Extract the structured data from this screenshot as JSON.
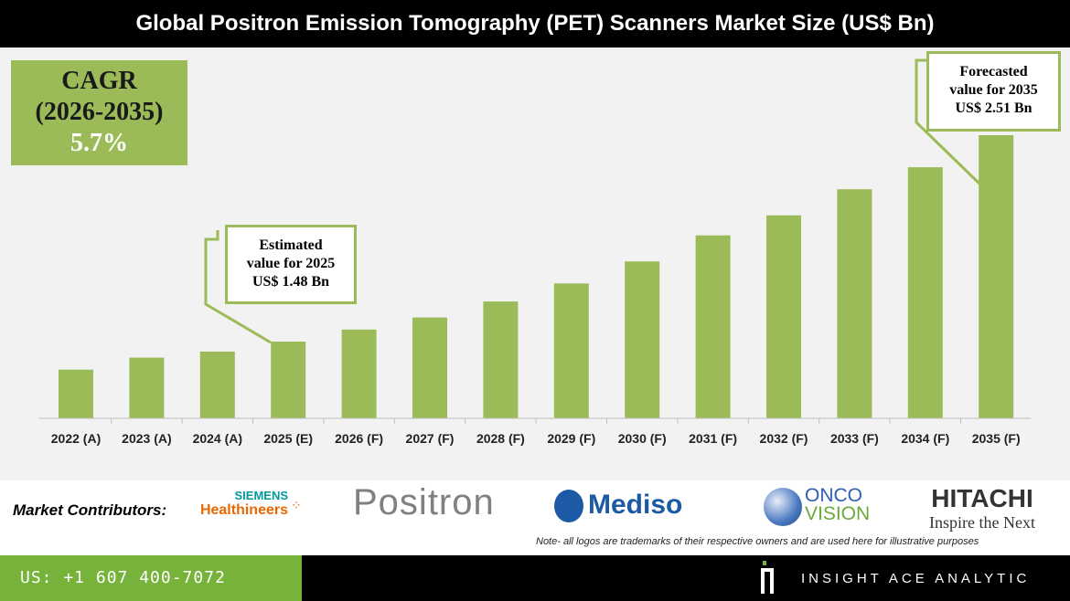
{
  "title": "Global Positron Emission Tomography (PET) Scanners Market Size (US$ Bn)",
  "cagr": {
    "label": "CAGR",
    "period": "(2026-2035)",
    "value": "5.7%"
  },
  "callouts": {
    "estimated": {
      "line1": "Estimated",
      "line2": "value for 2025",
      "line3": "US$ 1.48 Bn"
    },
    "forecasted": {
      "line1": "Forecasted",
      "line2": "value for 2035",
      "line3": "US$ 2.51 Bn"
    }
  },
  "chart_data": {
    "type": "bar",
    "title": "Global Positron Emission Tomography (PET) Scanners Market Size (US$ Bn)",
    "categories": [
      "2022 (A)",
      "2023 (A)",
      "2024 (A)",
      "2025 (E)",
      "2026 (F)",
      "2027 (F)",
      "2028 (F)",
      "2029 (F)",
      "2030 (F)",
      "2031 (F)",
      "2032 (F)",
      "2033 (F)",
      "2034 (F)",
      "2035 (F)"
    ],
    "values": [
      1.34,
      1.4,
      1.43,
      1.48,
      1.54,
      1.6,
      1.68,
      1.77,
      1.88,
      2.01,
      2.11,
      2.24,
      2.35,
      2.51
    ],
    "xlabel": "",
    "ylabel": "",
    "grid": false,
    "bar_color": "#9bbb59"
  },
  "footer": {
    "contributors_label": "Market Contributors:",
    "logos": {
      "siemens_top": "SIEMENS",
      "siemens_bottom": "Healthineers",
      "positron": "Positron",
      "mediso": "Mediso",
      "onco": "ONCO",
      "vision": "VISION",
      "hitachi": "HITACHI",
      "hitachi_tag": "Inspire the Next"
    },
    "note": "Note- all logos are trademarks of their respective owners and are used here for illustrative purposes",
    "phone": "US: +1 607 400-7072",
    "brand": "INSIGHT ACE ANALYTIC"
  }
}
